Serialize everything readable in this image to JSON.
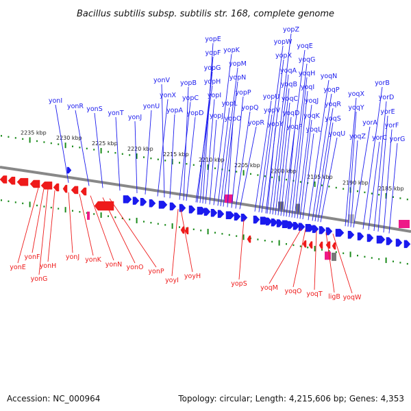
{
  "title": "Bacillus subtilis subsp. subtilis str. 168, complete genome",
  "footer": {
    "accession": "Accession: NC_000964",
    "summary": "Topology: circular; Length: 4,215,606 bp; Genes: 4,353"
  },
  "colors": {
    "forward_gene": "#1a1aee",
    "reverse_gene": "#ee1a1a",
    "rna": "#ee1a88",
    "pseudo": "#777777",
    "tick": "#1a8a1a",
    "backbone": "#888888"
  },
  "scale_labels": [
    "2235 kbp",
    "2230 kbp",
    "2225 kbp",
    "2220 kbp",
    "2215 kbp",
    "2210 kbp",
    "2205 kbp",
    "2200 kbp",
    "2195 kbp",
    "2190 kbp",
    "2185 kbp"
  ],
  "top_labels": [
    "yonI",
    "yonR",
    "yonS",
    "yonT",
    "yonJ",
    "yonU",
    "yonX",
    "yonV",
    "yopA",
    "yopC",
    "yopB",
    "yopD",
    "yopH",
    "yopG",
    "yopF",
    "yopE",
    "yopI",
    "yopJ",
    "yopK",
    "yopL",
    "yopM",
    "yopN",
    "yopO",
    "yopP",
    "yopQ",
    "yopR",
    "yopU",
    "yopV",
    "yopW",
    "yopX",
    "yopY",
    "yopZ",
    "yoqA",
    "yoqB",
    "yoqC",
    "yoqD",
    "yoqE",
    "yoqF",
    "yoqG",
    "yoqH",
    "yoqI",
    "yoqJ",
    "yoqK",
    "yoqL",
    "yoqN",
    "yoqP",
    "yoqR",
    "yoqS",
    "yoqU",
    "yoqX",
    "yoqY",
    "yoqZ",
    "yorA",
    "yorB",
    "yorC",
    "yorD",
    "yorE",
    "yorF",
    "yorG"
  ],
  "bottom_labels": [
    "yonE",
    "yonF",
    "yonG",
    "yonH",
    "yonJ",
    "yonK",
    "yonN",
    "yonO",
    "yonP",
    "yoyI",
    "yoyH",
    "yopS",
    "yoqM",
    "yoqO",
    "yoqT",
    "ligB",
    "yoqW"
  ]
}
